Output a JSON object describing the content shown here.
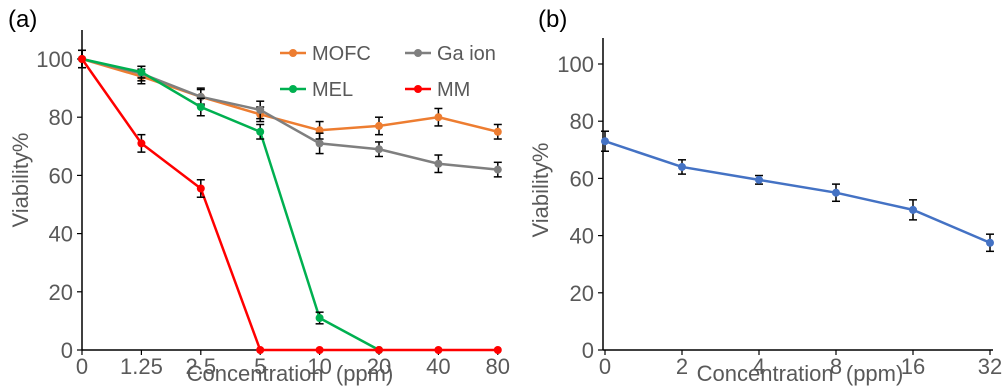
{
  "chart_data": [
    {
      "panel_label": "(a)",
      "type": "line",
      "xlabel": "Concentration  (ppm)",
      "ylabel": "Viability%",
      "categories": [
        "0",
        "1.25",
        "2.5",
        "5",
        "10",
        "20",
        "40",
        "80"
      ],
      "ylim": [
        0,
        110
      ],
      "yticks": [
        "0",
        "20",
        "40",
        "60",
        "80",
        "100"
      ],
      "grid": false,
      "legend_position": "top-right",
      "series": [
        {
          "name": "MOFC",
          "color": "#ED7D31",
          "values": [
            100,
            94,
            87,
            81,
            75.5,
            77,
            80,
            75
          ],
          "errors": [
            3,
            2.5,
            2.5,
            2.5,
            3,
            3,
            3,
            2.5
          ]
        },
        {
          "name": "Ga ion",
          "color": "#7F7F7F",
          "values": [
            100,
            95,
            87,
            82.5,
            71,
            69,
            64,
            62
          ],
          "errors": [
            3,
            2.5,
            3,
            3,
            3.5,
            2.5,
            3,
            2.5
          ]
        },
        {
          "name": "MEL",
          "color": "#00B050",
          "values": [
            100,
            95.5,
            83.5,
            75,
            11,
            0,
            null,
            null
          ],
          "errors": [
            3,
            2,
            3,
            2.5,
            2,
            0,
            null,
            null
          ]
        },
        {
          "name": "MM",
          "color": "#FF0000",
          "values": [
            100,
            71,
            55.5,
            0,
            0,
            0,
            0,
            0
          ],
          "errors": [
            3,
            3,
            3,
            0,
            0,
            0,
            0,
            0
          ]
        }
      ]
    },
    {
      "panel_label": "(b)",
      "type": "line",
      "xlabel": "Concentration  (ppm)",
      "ylabel": "Viability%",
      "categories": [
        "0",
        "2",
        "4",
        "8",
        "16",
        "32"
      ],
      "ylim": [
        0,
        110
      ],
      "yticks": [
        "0",
        "20",
        "40",
        "60",
        "80",
        "100"
      ],
      "grid": false,
      "series": [
        {
          "color": "#4472C4",
          "values": [
            73,
            64,
            59.5,
            55,
            49,
            37.5
          ],
          "errors": [
            3.5,
            2.5,
            1.5,
            3,
            3.5,
            3
          ]
        }
      ]
    }
  ]
}
